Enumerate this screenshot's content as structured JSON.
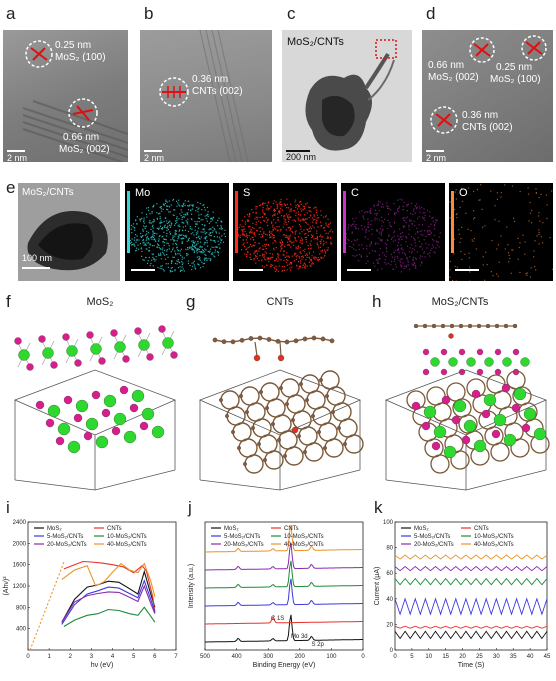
{
  "panels": {
    "a": {
      "label": "a",
      "ann1_d": "0.25 nm",
      "ann1_p": "MoS₂ (100)",
      "ann2_d": "0.66 nm",
      "ann2_p": "MoS₂ (002)",
      "scale": "2 nm"
    },
    "b": {
      "label": "b",
      "ann_d": "0.36 nm",
      "ann_p": "CNTs (002)",
      "scale": "2 nm"
    },
    "c": {
      "label": "c",
      "title": "MoS₂/CNTs",
      "scale": "200 nm"
    },
    "d": {
      "label": "d",
      "ann1_d": "0.66 nm",
      "ann1_p": "MoS₂ (002)",
      "ann2_d": "0.25 nm",
      "ann2_p": "MoS₂ (100)",
      "ann3_d": "0.36 nm",
      "ann3_p": "CNTs (002)",
      "scale": "2 nm"
    },
    "e": {
      "label": "e",
      "title": "MoS₂/CNTs",
      "scale": "100 nm",
      "maps": [
        "Mo",
        "S",
        "C",
        "O"
      ],
      "colors": {
        "Mo": "#35d6d6",
        "S": "#ff2a1a",
        "C": "#cc33cc",
        "O": "#ff8a3a"
      }
    },
    "f": {
      "label": "f",
      "title": "MoS₂"
    },
    "g": {
      "label": "g",
      "title": "CNTs"
    },
    "h": {
      "label": "h",
      "title": "MoS₂/CNTs"
    },
    "i": {
      "label": "i"
    },
    "j": {
      "label": "j"
    },
    "k": {
      "label": "k"
    }
  },
  "atom_colors": {
    "Mo": "#2ed82e",
    "S": "#d81e8c",
    "C": "#8b5a3c",
    "O": "#e03020",
    "H": "#f0f0f0"
  },
  "chart_data": [
    {
      "type": "line",
      "panel": "i",
      "xlabel": "hν (eV)",
      "ylabel": "(Ahν)²",
      "xlim": [
        0,
        7
      ],
      "ylim": [
        0,
        2400
      ],
      "xticks": [
        0,
        1,
        2,
        3,
        4,
        5,
        6,
        7
      ],
      "yticks": [
        400,
        800,
        1200,
        1600,
        2000,
        2400
      ],
      "legend": [
        "MoS₂",
        "CNTs",
        "5-MoS₂/CNTs",
        "10-MoS₂/CNTs",
        "20-MoS₂/CNTs",
        "40-MoS₂/CNTs"
      ],
      "series": [
        {
          "name": "MoS₂",
          "color": "#111111",
          "x": [
            1.6,
            2.2,
            2.8,
            3.3,
            3.8,
            4.3,
            4.8,
            5.2,
            5.5,
            5.8,
            6.0
          ],
          "y": [
            520,
            950,
            1180,
            1220,
            1290,
            1270,
            1150,
            1050,
            1470,
            1060,
            800
          ]
        },
        {
          "name": "CNTs",
          "color": "#e8312a",
          "x": [
            1.7,
            2.2,
            2.6,
            3.0,
            3.5,
            4.0,
            4.5,
            5.0,
            5.4,
            5.6,
            5.9,
            6.0
          ],
          "y": [
            1520,
            1600,
            1660,
            1650,
            1630,
            1600,
            1560,
            1450,
            1580,
            1480,
            1000,
            700
          ]
        },
        {
          "name": "5-MoS₂/CNTs",
          "color": "#3a3adf",
          "x": [
            1.6,
            2.2,
            2.8,
            3.3,
            3.8,
            4.3,
            4.8,
            5.2,
            5.5,
            5.8,
            6.0
          ],
          "y": [
            480,
            850,
            1050,
            1110,
            1180,
            1160,
            1060,
            980,
            1300,
            960,
            720
          ]
        },
        {
          "name": "10-MoS₂/CNTs",
          "color": "#1e8a3a",
          "x": [
            1.7,
            2.2,
            2.8,
            3.3,
            3.8,
            4.3,
            4.8,
            5.2,
            5.5,
            5.8,
            6.0
          ],
          "y": [
            440,
            560,
            650,
            680,
            760,
            740,
            680,
            650,
            800,
            640,
            520
          ]
        },
        {
          "name": "20-MoS₂/CNTs",
          "color": "#8a2ab0",
          "x": [
            1.6,
            2.2,
            2.8,
            3.3,
            3.8,
            4.3,
            4.8,
            5.2,
            5.5,
            5.8,
            6.0
          ],
          "y": [
            520,
            900,
            1020,
            1060,
            1090,
            1080,
            990,
            910,
            1200,
            880,
            680
          ]
        },
        {
          "name": "40-MoS₂/CNTs",
          "color": "#e8942a",
          "x": [
            1.6,
            2.2,
            2.8,
            3.2,
            3.6,
            4.0,
            4.4,
            4.8,
            5.2,
            5.5,
            5.8,
            6.0
          ],
          "y": [
            1320,
            1500,
            1580,
            1200,
            1280,
            1460,
            1620,
            1500,
            1450,
            1620,
            1300,
            1000
          ]
        },
        {
          "name": "",
          "color": "#e8942a",
          "dashed": true,
          "x": [
            0.1,
            1.7
          ],
          "y": [
            0,
            1650
          ]
        }
      ]
    },
    {
      "type": "line",
      "panel": "j",
      "xlabel": "Binding Energy (eV)",
      "ylabel": "Intensity (a.u.)",
      "xlim": [
        500,
        0
      ],
      "xticks": [
        500,
        400,
        300,
        200,
        100,
        0
      ],
      "legend": [
        "MoS₂",
        "CNTs",
        "5-MoS₂/CNTs",
        "10-MoS₂/CNTs",
        "20-MoS₂/CNTs",
        "40-MoS₂/CNTs"
      ],
      "annotations": [
        "C 1S",
        "Mo 3d",
        "S 2p"
      ],
      "series": [
        {
          "name": "MoS₂",
          "color": "#111111",
          "offset": 0
        },
        {
          "name": "CNTs",
          "color": "#e8312a",
          "offset": 1
        },
        {
          "name": "5-MoS₂/CNTs",
          "color": "#3a3adf",
          "offset": 2
        },
        {
          "name": "10-MoS₂/CNTs",
          "color": "#1e8a3a",
          "offset": 3
        },
        {
          "name": "20-MoS₂/CNTs",
          "color": "#8a2ab0",
          "offset": 4
        },
        {
          "name": "40-MoS₂/CNTs",
          "color": "#e8942a",
          "offset": 5
        }
      ]
    },
    {
      "type": "line",
      "panel": "k",
      "xlabel": "Time (S)",
      "ylabel": "Current (μA)",
      "xlim": [
        0,
        45
      ],
      "ylim": [
        0,
        100
      ],
      "xticks": [
        0,
        5,
        10,
        15,
        20,
        25,
        30,
        35,
        40,
        45
      ],
      "yticks": [
        0,
        20,
        40,
        60,
        80,
        100
      ],
      "legend": [
        "MoS₂",
        "CNTs",
        "5-MoS₂/CNTs",
        "10-MoS₂/CNTs",
        "20-MoS₂/CNTs",
        "40-MoS₂/CNTs"
      ],
      "series": [
        {
          "name": "MoS₂",
          "color": "#111111",
          "base": 9,
          "amp": 7
        },
        {
          "name": "CNTs",
          "color": "#e8312a",
          "base": 17,
          "amp": 2
        },
        {
          "name": "5-MoS₂/CNTs",
          "color": "#3a3adf",
          "base": 28,
          "amp": 15
        },
        {
          "name": "10-MoS₂/CNTs",
          "color": "#1e8a3a",
          "base": 51,
          "amp": 6
        },
        {
          "name": "20-MoS₂/CNTs",
          "color": "#8a2ab0",
          "base": 62,
          "amp": 4
        },
        {
          "name": "40-MoS₂/CNTs",
          "color": "#e8942a",
          "base": 71,
          "amp": 4
        }
      ]
    }
  ]
}
